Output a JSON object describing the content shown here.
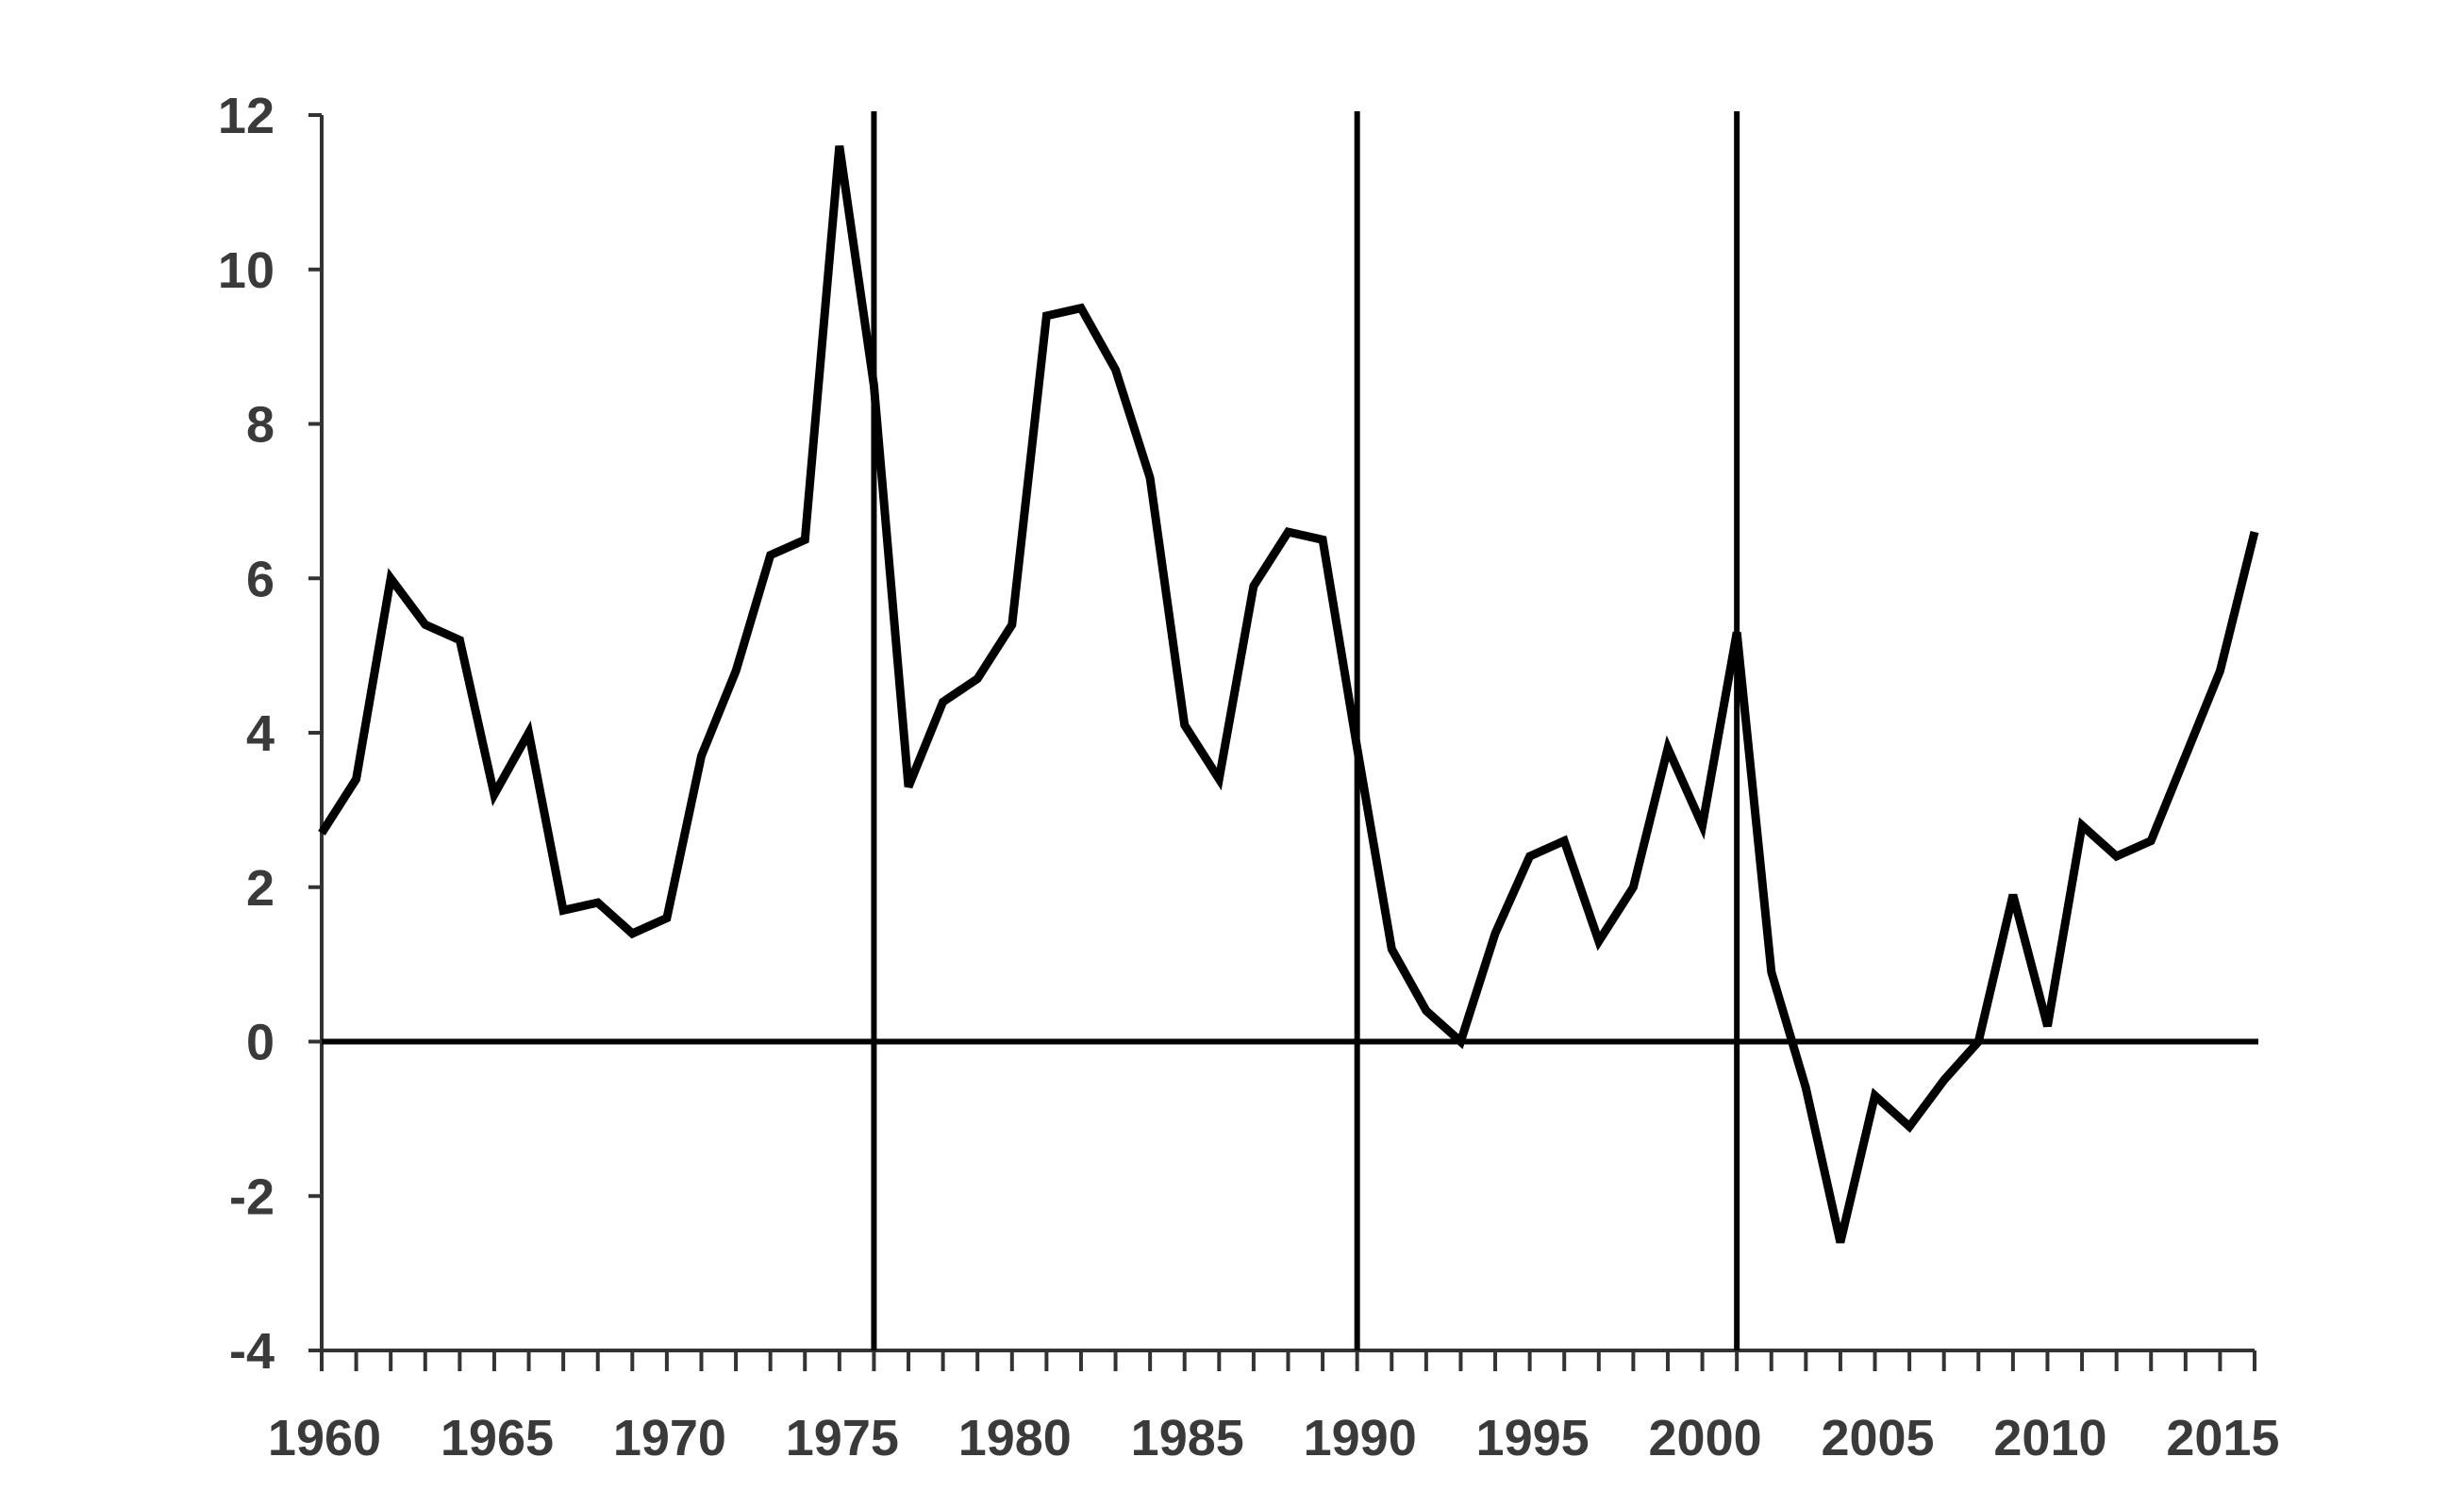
{
  "chart_data": {
    "type": "line",
    "title": "",
    "xlabel": "",
    "ylabel": "",
    "xlim": [
      1960,
      2016
    ],
    "ylim": [
      -4,
      12
    ],
    "y_ticks": [
      12,
      10,
      8,
      6,
      4,
      2,
      0,
      -2,
      -4
    ],
    "x_tick_labels": [
      "1960",
      "1965",
      "1970",
      "1975",
      "1980",
      "1985",
      "1990",
      "1995",
      "2000",
      "2005",
      "2010",
      "2015"
    ],
    "x_tick_values": [
      1960,
      1965,
      1970,
      1975,
      1980,
      1985,
      1990,
      1995,
      2000,
      2005,
      2010,
      2015
    ],
    "zero_line": 0,
    "vertical_lines": [
      1976,
      1990,
      2001
    ],
    "grid": false,
    "legend": "none",
    "line_color": "#000000",
    "axis_color": "#333333",
    "series": [
      {
        "x": [
          1960,
          1961,
          1962,
          1963,
          1964,
          1965,
          1966,
          1967,
          1968,
          1969,
          1970,
          1971,
          1972,
          1973,
          1974,
          1975,
          1976,
          1977,
          1978,
          1979,
          1980,
          1981,
          1982,
          1983,
          1984,
          1985,
          1986,
          1987,
          1988,
          1989,
          1990,
          1991,
          1992,
          1993,
          1994,
          1995,
          1996,
          1997,
          1998,
          1999,
          2000,
          2001,
          2002,
          2003,
          2004,
          2005,
          2006,
          2007,
          2008,
          2009,
          2010,
          2011,
          2012,
          2013,
          2014,
          2015,
          2016
        ],
        "values": [
          2.7,
          3.4,
          6.0,
          5.4,
          5.2,
          3.2,
          4.0,
          1.7,
          1.8,
          1.4,
          1.6,
          3.7,
          4.8,
          6.3,
          6.5,
          11.6,
          8.5,
          3.3,
          4.4,
          4.7,
          5.4,
          9.4,
          9.5,
          8.7,
          7.3,
          4.1,
          3.4,
          5.9,
          6.6,
          6.5,
          3.8,
          1.2,
          0.4,
          0.0,
          1.4,
          2.4,
          2.6,
          1.3,
          2.0,
          3.8,
          2.8,
          5.3,
          0.9,
          -0.6,
          -2.6,
          -0.7,
          -1.1,
          -0.5,
          0.0,
          1.9,
          0.2,
          2.8,
          2.4,
          2.6,
          3.7,
          4.8,
          6.6
        ]
      }
    ]
  }
}
